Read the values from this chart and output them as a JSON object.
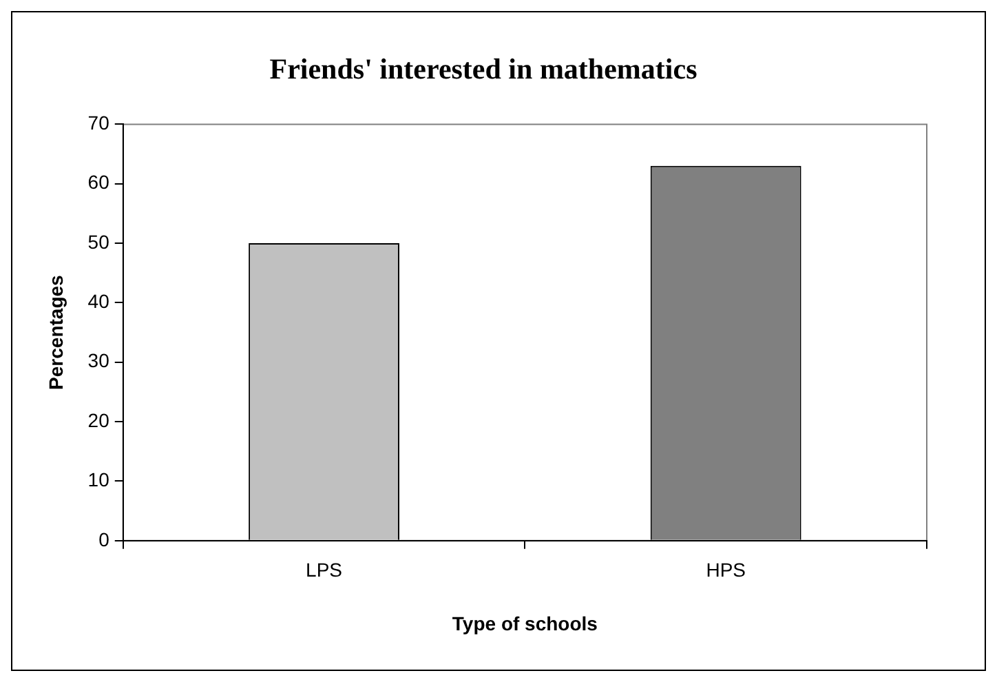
{
  "chart_data": {
    "type": "bar",
    "title": "Friends' interested in mathematics",
    "xlabel": "Type of schools",
    "ylabel": "Percentages",
    "categories": [
      "LPS",
      "HPS"
    ],
    "values": [
      50,
      63
    ],
    "colors": [
      "#c0c0c0",
      "#808080"
    ],
    "ylim": [
      0,
      70
    ],
    "yticks": [
      0,
      10,
      20,
      30,
      40,
      50,
      60,
      70
    ],
    "grid": false,
    "legend": false
  }
}
